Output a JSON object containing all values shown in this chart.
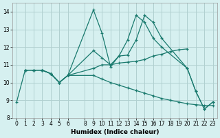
{
  "xlabel": "Humidex (Indice chaleur)",
  "bg_color": "#d6f0f0",
  "grid_color": "#b0d0d0",
  "line_color": "#1a7a6e",
  "xlim": [
    -0.5,
    23.5
  ],
  "ylim": [
    8.0,
    14.5
  ],
  "xticks": [
    0,
    1,
    2,
    3,
    4,
    5,
    6,
    8,
    9,
    10,
    11,
    12,
    13,
    14,
    15,
    16,
    17,
    18,
    19,
    20,
    21,
    22,
    23
  ],
  "yticks": [
    8,
    9,
    10,
    11,
    12,
    13,
    14
  ],
  "lines": [
    {
      "x": [
        0,
        1,
        2,
        3,
        4,
        5,
        6,
        9,
        10,
        11,
        12,
        13,
        14,
        15,
        16,
        17,
        20,
        21,
        22,
        23
      ],
      "y": [
        8.9,
        10.7,
        10.7,
        10.7,
        10.5,
        10.0,
        10.4,
        14.1,
        12.8,
        10.9,
        11.5,
        12.4,
        13.8,
        13.4,
        12.5,
        12.0,
        10.8,
        9.5,
        8.5,
        8.9
      ]
    },
    {
      "x": [
        1,
        2,
        3,
        4,
        5,
        6,
        9,
        10,
        11,
        12,
        13,
        14,
        15,
        16,
        17,
        20,
        21,
        22,
        23
      ],
      "y": [
        10.7,
        10.7,
        10.7,
        10.5,
        10.0,
        10.4,
        11.8,
        11.4,
        11.0,
        11.5,
        11.55,
        12.4,
        13.8,
        13.4,
        12.5,
        10.8,
        9.5,
        8.5,
        8.9
      ]
    },
    {
      "x": [
        1,
        2,
        3,
        4,
        5,
        6,
        9,
        10,
        11,
        12,
        13,
        14,
        15,
        16,
        17,
        18,
        19,
        20
      ],
      "y": [
        10.7,
        10.7,
        10.7,
        10.5,
        10.0,
        10.4,
        10.8,
        11.0,
        11.0,
        11.1,
        11.15,
        11.2,
        11.3,
        11.5,
        11.6,
        11.75,
        11.85,
        11.9
      ]
    },
    {
      "x": [
        1,
        2,
        3,
        4,
        5,
        6,
        9,
        10,
        11,
        12,
        13,
        14,
        15,
        16,
        17,
        18,
        19,
        20,
        21,
        22,
        23
      ],
      "y": [
        10.7,
        10.7,
        10.7,
        10.5,
        10.0,
        10.4,
        10.4,
        10.2,
        10.0,
        9.85,
        9.7,
        9.55,
        9.4,
        9.25,
        9.1,
        9.0,
        8.9,
        8.8,
        8.75,
        8.7,
        8.7
      ]
    }
  ]
}
